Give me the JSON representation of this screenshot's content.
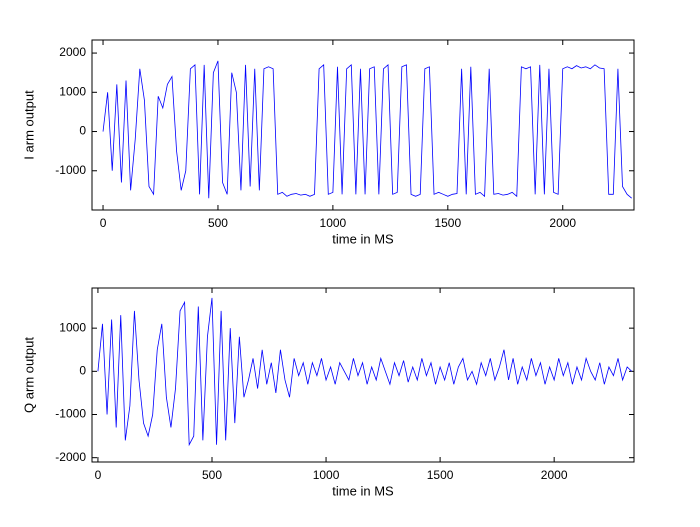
{
  "chart_data": [
    {
      "type": "line",
      "xlabel": "time in MS",
      "ylabel": "I arm output",
      "xlim": [
        -48,
        2310
      ],
      "ylim": [
        -2000,
        2333
      ],
      "xticks": [
        0,
        500,
        1000,
        1500,
        2000
      ],
      "yticks": [
        -1000,
        0,
        1000,
        2000
      ],
      "x": [
        0,
        20,
        40,
        60,
        80,
        100,
        120,
        140,
        160,
        180,
        200,
        220,
        240,
        260,
        280,
        300,
        320,
        340,
        360,
        380,
        400,
        420,
        440,
        460,
        480,
        500,
        520,
        540,
        560,
        580,
        600,
        620,
        640,
        660,
        680,
        700,
        720,
        740,
        760,
        780,
        800,
        820,
        840,
        860,
        880,
        900,
        920,
        940,
        960,
        980,
        1000,
        1020,
        1040,
        1060,
        1080,
        1100,
        1120,
        1140,
        1160,
        1180,
        1200,
        1220,
        1240,
        1260,
        1280,
        1300,
        1320,
        1340,
        1360,
        1380,
        1400,
        1420,
        1440,
        1460,
        1480,
        1500,
        1520,
        1540,
        1560,
        1580,
        1600,
        1620,
        1640,
        1660,
        1680,
        1700,
        1720,
        1740,
        1760,
        1780,
        1800,
        1820,
        1840,
        1860,
        1880,
        1900,
        1920,
        1940,
        1960,
        1980,
        2000,
        2020,
        2040,
        2060,
        2080,
        2100,
        2120,
        2140,
        2160,
        2180,
        2200,
        2220,
        2240,
        2260,
        2280,
        2300
      ],
      "series": [
        {
          "color": "#0000ff",
          "values": [
            0,
            1000,
            -1000,
            1200,
            -1300,
            1300,
            -1500,
            -200,
            1600,
            800,
            -1400,
            -1600,
            900,
            600,
            1200,
            1400,
            -500,
            -1500,
            -1000,
            1600,
            1700,
            -1600,
            1700,
            -1700,
            1500,
            1800,
            -1300,
            -1600,
            1500,
            1000,
            -1500,
            1700,
            -1400,
            1600,
            -1500,
            1600,
            1650,
            1600,
            -1600,
            -1550,
            -1650,
            -1600,
            -1580,
            -1620,
            -1600,
            -1650,
            -1600,
            1600,
            1700,
            -1600,
            -1550,
            1650,
            -1600,
            1600,
            1700,
            -1600,
            1600,
            -1600,
            1600,
            1650,
            -1600,
            1600,
            1700,
            -1600,
            -1550,
            1650,
            1700,
            -1600,
            -1650,
            -1600,
            1600,
            1650,
            -1600,
            -1550,
            -1600,
            -1650,
            -1600,
            -1580,
            1600,
            -1600,
            1650,
            -1600,
            -1550,
            -1650,
            1600,
            -1600,
            -1580,
            -1620,
            -1600,
            -1550,
            -1650,
            1650,
            1600,
            1650,
            -1600,
            1700,
            -1600,
            1600,
            -1550,
            -1600,
            1600,
            1650,
            1600,
            1680,
            1620,
            1650,
            1600,
            1700,
            1620,
            1600,
            -1600,
            -1600,
            1600,
            -1400,
            -1600,
            -1700
          ]
        }
      ]
    },
    {
      "type": "line",
      "xlabel": "time in MS",
      "ylabel": "Q arm output",
      "xlim": [
        -26,
        2350
      ],
      "ylim": [
        -2100,
        1930
      ],
      "xticks": [
        0,
        500,
        1000,
        1500,
        2000
      ],
      "yticks": [
        -2000,
        -1000,
        0,
        1000
      ],
      "x": [
        0,
        20,
        40,
        60,
        80,
        100,
        120,
        140,
        160,
        180,
        200,
        220,
        240,
        260,
        280,
        300,
        320,
        340,
        360,
        380,
        400,
        420,
        440,
        460,
        480,
        500,
        520,
        540,
        560,
        580,
        600,
        620,
        640,
        660,
        680,
        700,
        720,
        740,
        760,
        780,
        800,
        820,
        840,
        860,
        880,
        900,
        920,
        940,
        960,
        980,
        1000,
        1020,
        1040,
        1060,
        1080,
        1100,
        1120,
        1140,
        1160,
        1180,
        1200,
        1220,
        1240,
        1260,
        1280,
        1300,
        1320,
        1340,
        1360,
        1380,
        1400,
        1420,
        1440,
        1460,
        1480,
        1500,
        1520,
        1540,
        1560,
        1580,
        1600,
        1620,
        1640,
        1660,
        1680,
        1700,
        1720,
        1740,
        1760,
        1780,
        1800,
        1820,
        1840,
        1860,
        1880,
        1900,
        1920,
        1940,
        1960,
        1980,
        2000,
        2020,
        2040,
        2060,
        2080,
        2100,
        2120,
        2140,
        2160,
        2180,
        2200,
        2220,
        2240,
        2260,
        2280,
        2300,
        2320,
        2340
      ],
      "series": [
        {
          "color": "#0000ff",
          "values": [
            0,
            1100,
            -1000,
            1200,
            -1300,
            1300,
            -1600,
            -800,
            1400,
            -200,
            -1200,
            -1500,
            -1000,
            500,
            1100,
            -600,
            -1300,
            -400,
            1400,
            1600,
            -1700,
            -1500,
            1500,
            -1600,
            800,
            1700,
            -1700,
            1400,
            -1600,
            1000,
            -1200,
            800,
            -600,
            -200,
            300,
            -400,
            500,
            -300,
            200,
            -500,
            500,
            -200,
            -600,
            300,
            -100,
            200,
            -300,
            200,
            -100,
            300,
            -200,
            100,
            -300,
            200,
            0,
            -200,
            300,
            -100,
            200,
            -300,
            100,
            -200,
            300,
            0,
            -300,
            200,
            -100,
            250,
            -250,
            100,
            -200,
            300,
            -100,
            200,
            -300,
            100,
            -200,
            200,
            -300,
            100,
            300,
            -200,
            0,
            -300,
            200,
            -100,
            300,
            -200,
            100,
            500,
            -200,
            300,
            -300,
            100,
            -200,
            300,
            -100,
            200,
            -300,
            100,
            -200,
            300,
            -100,
            200,
            -300,
            100,
            -200,
            300,
            0,
            -200,
            200,
            -300,
            100,
            -100,
            300,
            -200,
            100,
            0
          ]
        }
      ]
    }
  ]
}
